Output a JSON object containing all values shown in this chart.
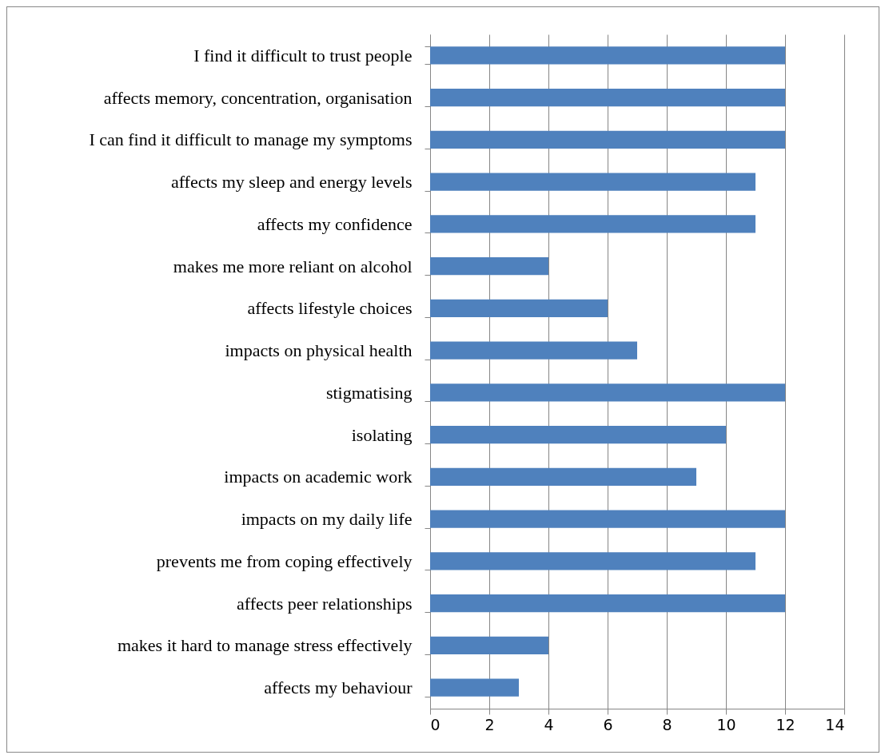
{
  "chart_data": {
    "type": "bar",
    "orientation": "horizontal",
    "categories": [
      "I find it difficult to trust people",
      "affects  memory, concentration, organisation ",
      "I can find it difficult to manage my symptoms",
      "affects my sleep and  energy levels",
      "affects my confidence",
      "makes me more reliant on alcohol",
      "affects lifestyle choices",
      "impacts on physical health",
      "stigmatising",
      "isolating",
      "impacts on academic work",
      "impacts on my daily life",
      "prevents me from coping effectively",
      "affects peer relationships",
      "makes it hard to manage stress effectively ",
      "affects my behaviour"
    ],
    "values": [
      12,
      12,
      12,
      11,
      11,
      4,
      6,
      7,
      12,
      10,
      9,
      12,
      11,
      12,
      4,
      3
    ],
    "color": "#4f81bd",
    "xlim": [
      0,
      14
    ],
    "xticks": [
      0,
      2,
      4,
      6,
      8,
      10,
      12,
      14
    ],
    "grid": "x"
  }
}
